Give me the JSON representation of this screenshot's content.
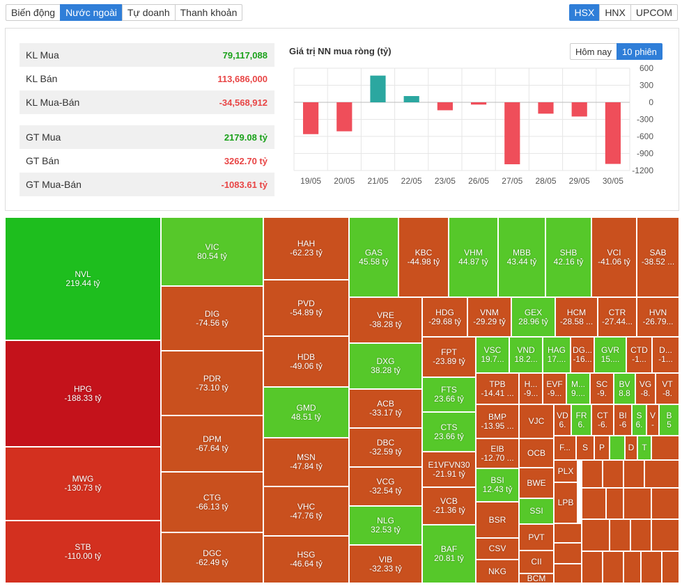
{
  "tabs": [
    "Biến động",
    "Nước ngoài",
    "Tự doanh",
    "Thanh khoản"
  ],
  "exchanges": [
    "HSX",
    "HNX",
    "UPCOM"
  ],
  "stats": [
    {
      "label": "KL Mua",
      "value": "79,117,088",
      "color": "pos"
    },
    {
      "label": "KL Bán",
      "value": "113,686,000",
      "color": "neg"
    },
    {
      "label": "KL Mua-Bán",
      "value": "-34,568,912",
      "color": "neg"
    },
    {
      "label": "GT Mua",
      "value": "2179.08 tỷ",
      "color": "pos"
    },
    {
      "label": "GT Bán",
      "value": "3262.70 tỷ",
      "color": "neg"
    },
    {
      "label": "GT Mua-Bán",
      "value": "-1083.61 tỷ",
      "color": "neg"
    }
  ],
  "chart_title": "Giá trị NN mua ròng (tỷ)",
  "period_buttons": [
    "Hôm nay",
    "10 phiên"
  ],
  "chart_data": {
    "type": "bar",
    "title": "Giá trị NN mua ròng (tỷ)",
    "categories": [
      "19/05",
      "20/05",
      "21/05",
      "22/05",
      "23/05",
      "26/05",
      "27/05",
      "28/05",
      "29/05",
      "30/05"
    ],
    "values": [
      -560,
      -510,
      470,
      110,
      -140,
      -40,
      -1090,
      -200,
      -250,
      -1084
    ],
    "ylim": [
      -1200,
      600
    ],
    "yticks": [
      600,
      300,
      0,
      -300,
      -600,
      -900,
      -1200
    ],
    "colors": {
      "pos": "#2ba7a0",
      "neg": "#ef4e5a"
    }
  },
  "treemap": [
    {
      "t": "NVL",
      "v": "219.44 tỷ",
      "c": "#1ebe1e"
    },
    {
      "t": "HPG",
      "v": "-188.33 tỷ",
      "c": "#c4121b"
    },
    {
      "t": "MWG",
      "v": "-130.73 tỷ",
      "c": "#d3301f"
    },
    {
      "t": "STB",
      "v": "-110.00 tỷ",
      "c": "#d3301f"
    },
    {
      "t": "VIC",
      "v": "80.54 tỷ",
      "c": "#56c82a"
    },
    {
      "t": "DIG",
      "v": "-74.56 tỷ",
      "c": "#c9501e"
    },
    {
      "t": "PDR",
      "v": "-73.10 tỷ",
      "c": "#c9501e"
    },
    {
      "t": "DPM",
      "v": "-67.64 tỷ",
      "c": "#c9501e"
    },
    {
      "t": "CTG",
      "v": "-66.13 tỷ",
      "c": "#c9501e"
    },
    {
      "t": "DGC",
      "v": "-62.49 tỷ",
      "c": "#c9501e"
    },
    {
      "t": "HAH",
      "v": "-62.23 tỷ",
      "c": "#c9501e"
    },
    {
      "t": "PVD",
      "v": "-54.89 tỷ",
      "c": "#c9501e"
    },
    {
      "t": "HDB",
      "v": "-49.06 tỷ",
      "c": "#c9501e"
    },
    {
      "t": "GMD",
      "v": "48.51 tỷ",
      "c": "#56c82a"
    },
    {
      "t": "MSN",
      "v": "-47.84 tỷ",
      "c": "#c9501e"
    },
    {
      "t": "VHC",
      "v": "-47.76 tỷ",
      "c": "#c9501e"
    },
    {
      "t": "HSG",
      "v": "-46.64 tỷ",
      "c": "#c9501e"
    },
    {
      "t": "GAS",
      "v": "45.58 tỷ",
      "c": "#56c82a"
    },
    {
      "t": "KBC",
      "v": "-44.98 tỷ",
      "c": "#c9501e"
    },
    {
      "t": "VHM",
      "v": "44.87 tỷ",
      "c": "#56c82a"
    },
    {
      "t": "MBB",
      "v": "43.44 tỷ",
      "c": "#56c82a"
    },
    {
      "t": "SHB",
      "v": "42.16 tỷ",
      "c": "#56c82a"
    },
    {
      "t": "VCI",
      "v": "-41.06 tỷ",
      "c": "#c9501e"
    },
    {
      "t": "SAB",
      "v": "-38.52 ...",
      "c": "#c9501e"
    },
    {
      "t": "VRE",
      "v": "-38.28 tỷ",
      "c": "#c9501e"
    },
    {
      "t": "DXG",
      "v": "38.28 tỷ",
      "c": "#56c82a"
    },
    {
      "t": "ACB",
      "v": "-33.17 tỷ",
      "c": "#c9501e"
    },
    {
      "t": "DBC",
      "v": "-32.59 tỷ",
      "c": "#c9501e"
    },
    {
      "t": "VCG",
      "v": "-32.54 tỷ",
      "c": "#c9501e"
    },
    {
      "t": "NLG",
      "v": "32.53 tỷ",
      "c": "#56c82a"
    },
    {
      "t": "VIB",
      "v": "-32.33 tỷ",
      "c": "#c9501e"
    },
    {
      "t": "HDG",
      "v": "-29.68 tỷ",
      "c": "#c9501e"
    },
    {
      "t": "VNM",
      "v": "-29.29 tỷ",
      "c": "#c9501e"
    },
    {
      "t": "GEX",
      "v": "28.96 tỷ",
      "c": "#56c82a"
    },
    {
      "t": "HCM",
      "v": "-28.58 ...",
      "c": "#c9501e"
    },
    {
      "t": "CTR",
      "v": "-27.44...",
      "c": "#c9501e"
    },
    {
      "t": "HVN",
      "v": "-26.79...",
      "c": "#c9501e"
    },
    {
      "t": "FPT",
      "v": "-23.89 tỷ",
      "c": "#c9501e"
    },
    {
      "t": "FTS",
      "v": "23.66 tỷ",
      "c": "#56c82a"
    },
    {
      "t": "CTS",
      "v": "23.66 tỷ",
      "c": "#56c82a"
    },
    {
      "t": "E1VFVN30",
      "v": "-21.91 tỷ",
      "c": "#c9501e"
    },
    {
      "t": "VCB",
      "v": "-21.36 tỷ",
      "c": "#c9501e"
    },
    {
      "t": "BAF",
      "v": "20.81 tỷ",
      "c": "#56c82a"
    },
    {
      "t": "VSC",
      "v": "19.7...",
      "c": "#56c82a"
    },
    {
      "t": "VND",
      "v": "18.2...",
      "c": "#56c82a"
    },
    {
      "t": "HAG",
      "v": "17....",
      "c": "#56c82a"
    },
    {
      "t": "DG...",
      "v": "-16...",
      "c": "#c9501e"
    },
    {
      "t": "GVR",
      "v": "15....",
      "c": "#56c82a"
    },
    {
      "t": "CTD",
      "v": "-1...",
      "c": "#c9501e"
    },
    {
      "t": "D...",
      "v": "-1...",
      "c": "#c9501e"
    },
    {
      "t": "TPB",
      "v": "-14.41 ...",
      "c": "#c9501e"
    },
    {
      "t": "H...",
      "v": "-9...",
      "c": "#c9501e"
    },
    {
      "t": "EVF",
      "v": "-9...",
      "c": "#c9501e"
    },
    {
      "t": "M...",
      "v": "9....",
      "c": "#56c82a"
    },
    {
      "t": "SC",
      "v": "-9.",
      "c": "#c9501e"
    },
    {
      "t": "BV",
      "v": "8.8",
      "c": "#56c82a"
    },
    {
      "t": "VG",
      "v": "-8.",
      "c": "#c9501e"
    },
    {
      "t": "VT",
      "v": "-8.",
      "c": "#c9501e"
    },
    {
      "t": "BMP",
      "v": "-13.95 ...",
      "c": "#c9501e"
    },
    {
      "t": "VJC",
      "v": "",
      "c": "#c9501e"
    },
    {
      "t": "VD",
      "v": "6.",
      "c": "#c9501e"
    },
    {
      "t": "FR",
      "v": "6.",
      "c": "#56c82a"
    },
    {
      "t": "CT",
      "v": "-6.",
      "c": "#c9501e"
    },
    {
      "t": "BI",
      "v": "-6",
      "c": "#c9501e"
    },
    {
      "t": "S",
      "v": "6.",
      "c": "#56c82a"
    },
    {
      "t": "V",
      "v": "-",
      "c": "#c9501e"
    },
    {
      "t": "B",
      "v": "5",
      "c": "#56c82a"
    },
    {
      "t": "EIB",
      "v": "-12.70 ...",
      "c": "#c9501e"
    },
    {
      "t": "OCB",
      "v": "",
      "c": "#c9501e"
    },
    {
      "t": "F...",
      "v": "",
      "c": "#c9501e"
    },
    {
      "t": "S",
      "v": "",
      "c": "#c9501e"
    },
    {
      "t": "P",
      "v": "",
      "c": "#c9501e"
    },
    {
      "t": "",
      "v": "",
      "c": "#56c82a"
    },
    {
      "t": "D",
      "v": "",
      "c": "#c9501e"
    },
    {
      "t": "T",
      "v": "",
      "c": "#56c82a"
    },
    {
      "t": "",
      "v": "",
      "c": "#c9501e"
    },
    {
      "t": "BWE",
      "v": "",
      "c": "#c9501e"
    },
    {
      "t": "PLX",
      "v": "",
      "c": "#c9501e"
    },
    {
      "t": "BSI",
      "v": "12.43 tỷ",
      "c": "#56c82a"
    },
    {
      "t": "SSI",
      "v": "",
      "c": "#56c82a"
    },
    {
      "t": "LPB",
      "v": "",
      "c": "#c9501e"
    },
    {
      "t": "BSR",
      "v": "",
      "c": "#c9501e"
    },
    {
      "t": "PVT",
      "v": "",
      "c": "#c9501e"
    },
    {
      "t": "CSV",
      "v": "",
      "c": "#c9501e"
    },
    {
      "t": "CII",
      "v": "",
      "c": "#c9501e"
    },
    {
      "t": "NKG",
      "v": "",
      "c": "#c9501e"
    },
    {
      "t": "BCM",
      "v": "",
      "c": "#c9501e"
    }
  ]
}
